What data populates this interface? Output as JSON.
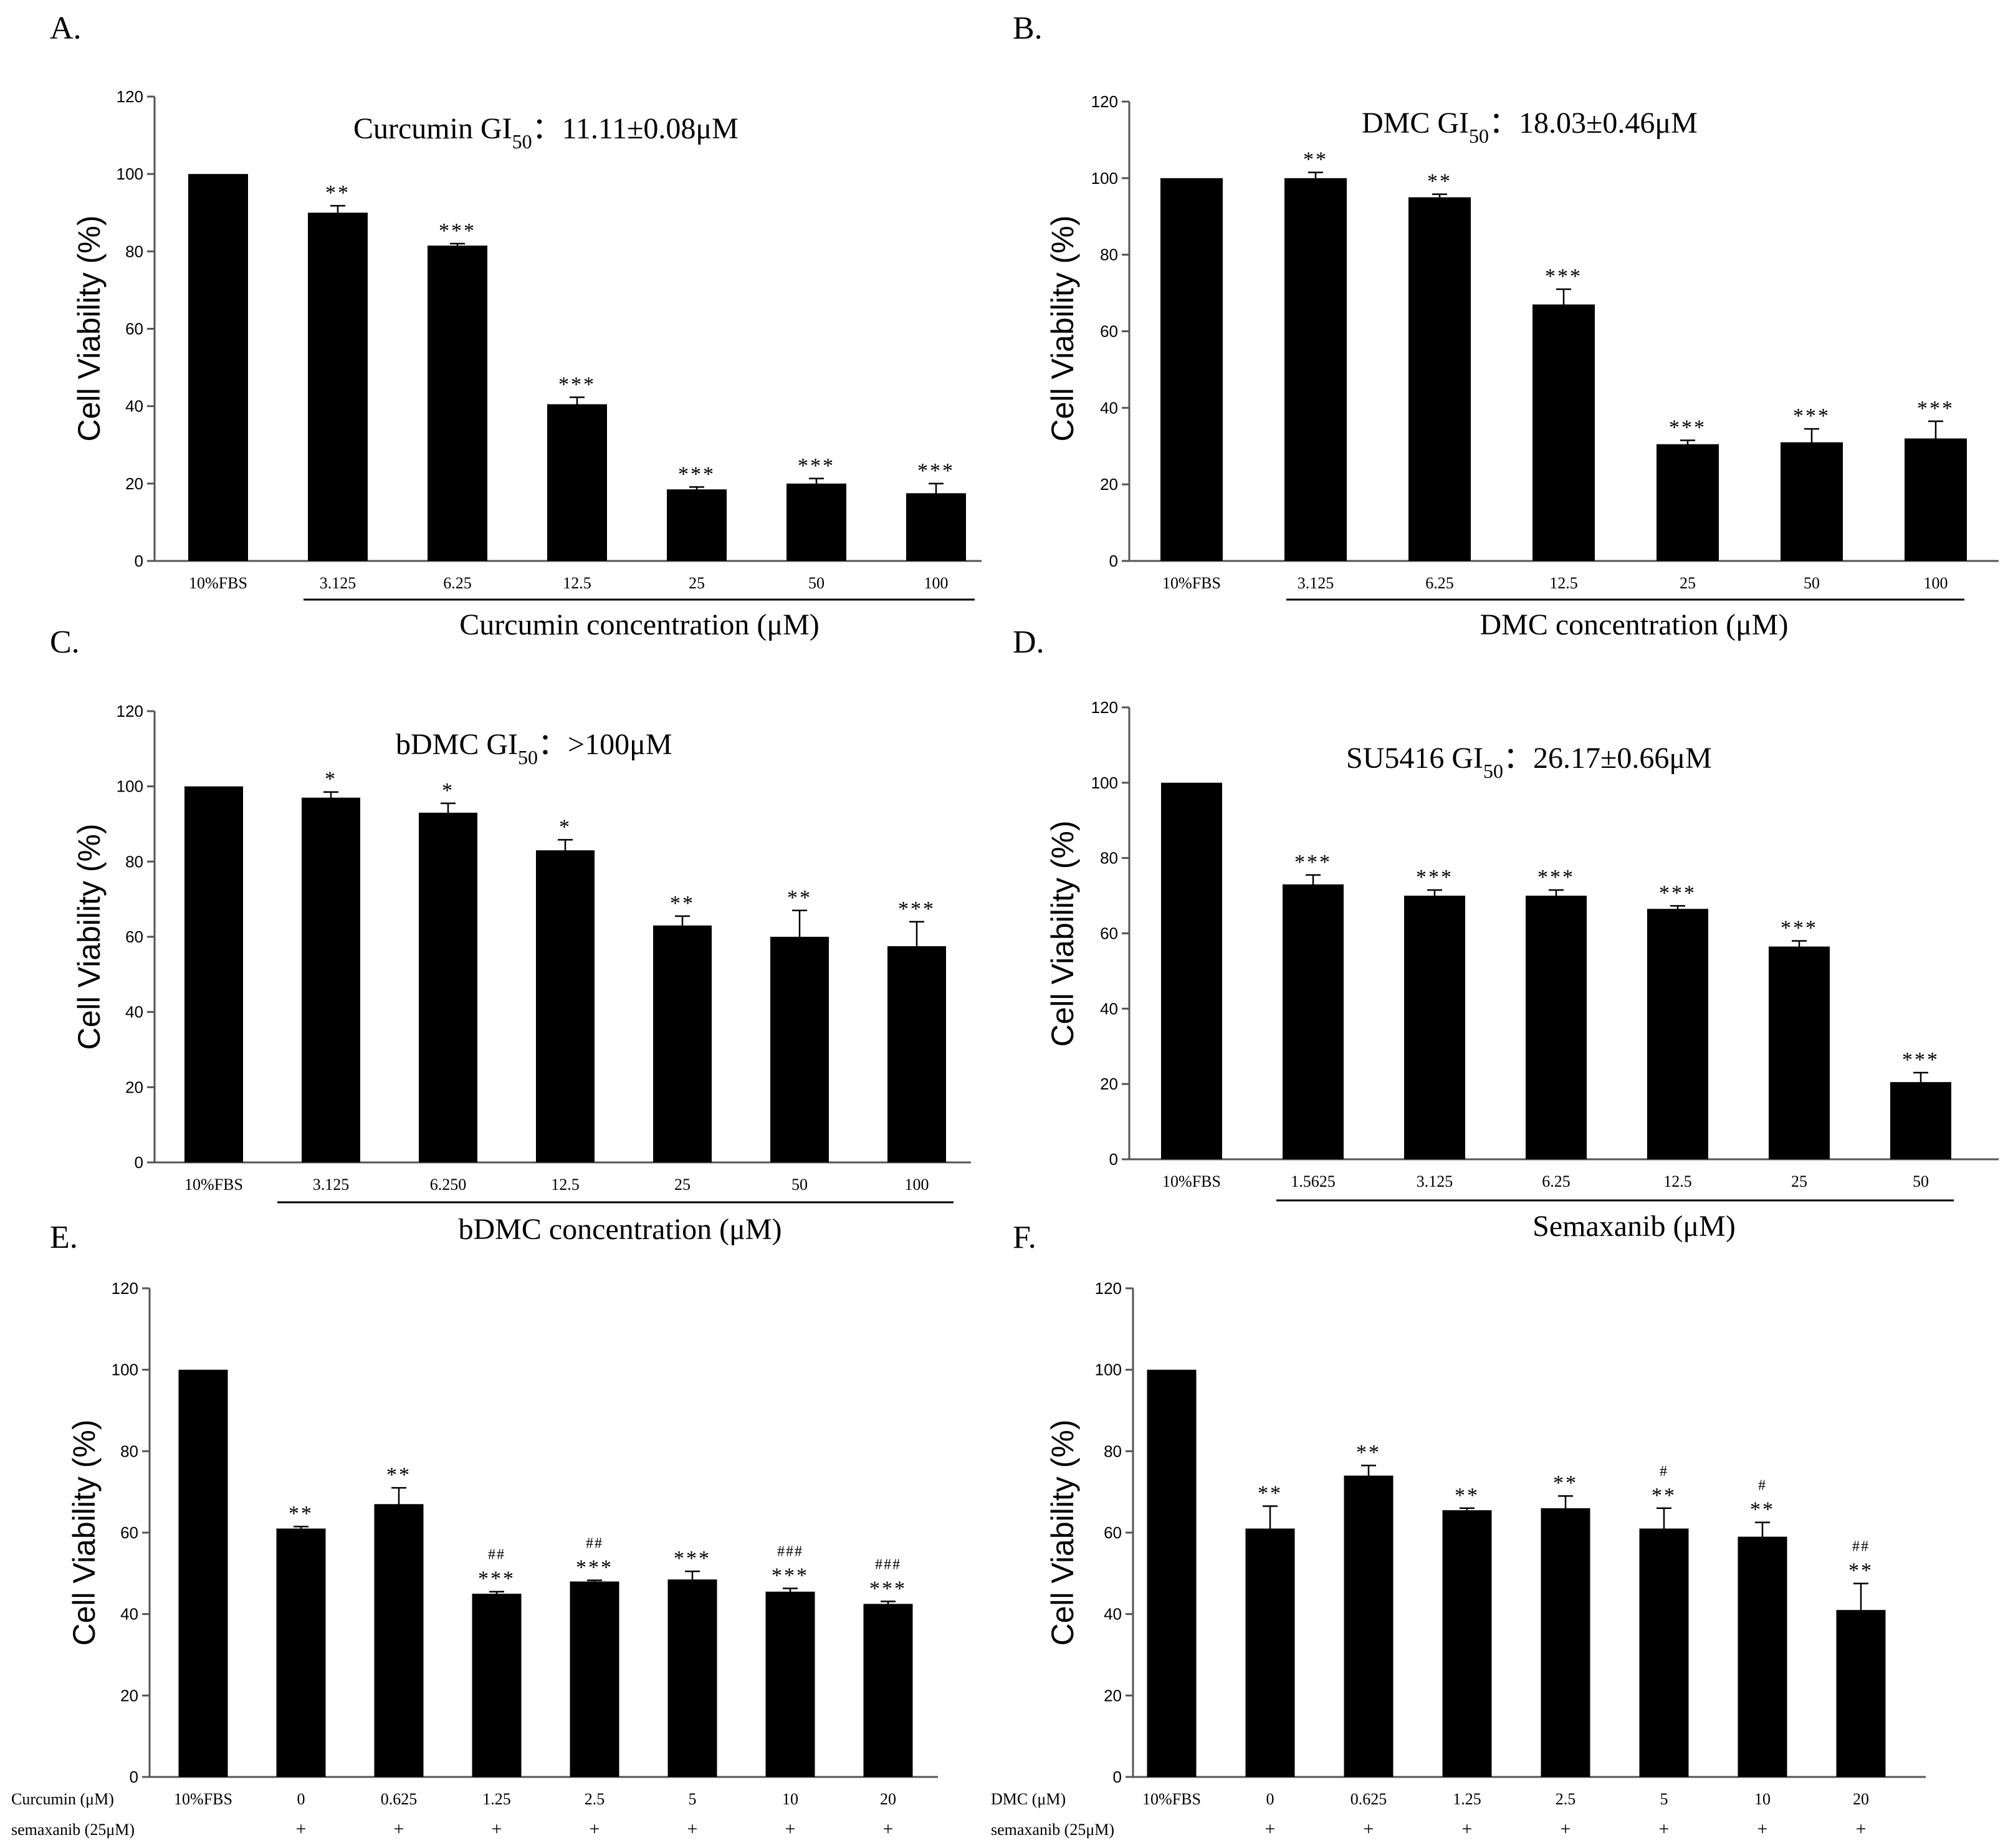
{
  "chart_data": [
    {
      "panel": "A.",
      "type": "bar",
      "title": "Curcumin GI",
      "title_sub": "50",
      "title_tail": "：11.11±0.08μM",
      "ylabel": "Cell Viability (%)",
      "xlabel": "Curcumin concentration (μM)",
      "ylim": [
        0,
        120
      ],
      "yticks": [
        0,
        20,
        40,
        60,
        80,
        100,
        120
      ],
      "categories": [
        "10%FBS",
        "3.125",
        "6.25",
        "12.5",
        "25",
        "50",
        "100"
      ],
      "values": [
        100,
        90,
        81.5,
        40.5,
        18.5,
        20,
        17.5
      ],
      "errors": [
        0,
        1.8,
        0.5,
        1.8,
        0.6,
        1.3,
        2.5
      ],
      "sig": [
        "",
        "**",
        "***",
        "***",
        "***",
        "***",
        "***"
      ],
      "sig2": [
        "",
        "",
        "",
        "",
        "",
        "",
        ""
      ]
    },
    {
      "panel": "B.",
      "type": "bar",
      "title": "DMC GI",
      "title_sub": "50",
      "title_tail": "：18.03±0.46μM",
      "ylabel": "Cell Viability (%)",
      "xlabel": "DMC concentration (μM)",
      "ylim": [
        0,
        120
      ],
      "yticks": [
        0,
        20,
        40,
        60,
        80,
        100,
        120
      ],
      "categories": [
        "10%FBS",
        "3.125",
        "6.25",
        "12.5",
        "25",
        "50",
        "100"
      ],
      "values": [
        100,
        100,
        95,
        67,
        30.5,
        31,
        32
      ],
      "errors": [
        0,
        1.5,
        0.8,
        4,
        1,
        3.5,
        4.5
      ],
      "sig": [
        "",
        "**",
        "**",
        "***",
        "***",
        "***",
        "***"
      ],
      "sig2": [
        "",
        "",
        "",
        "",
        "",
        "",
        ""
      ]
    },
    {
      "panel": "C.",
      "type": "bar",
      "title": "bDMC GI",
      "title_sub": "50",
      "title_tail": "：>100μM",
      "ylabel": "Cell Viability (%)",
      "xlabel": "bDMC concentration (μM)",
      "ylim": [
        0,
        120
      ],
      "yticks": [
        0,
        20,
        40,
        60,
        80,
        100,
        120
      ],
      "categories": [
        "10%FBS",
        "3.125",
        "6.250",
        "12.5",
        "25",
        "50",
        "100"
      ],
      "values": [
        100,
        97,
        93,
        83,
        63,
        60,
        57.5
      ],
      "errors": [
        0,
        1.5,
        2.5,
        2.8,
        2.5,
        7,
        6.5
      ],
      "sig": [
        "",
        "*",
        "*",
        "*",
        "**",
        "**",
        "***"
      ],
      "sig2": [
        "",
        "",
        "",
        "",
        "",
        "",
        ""
      ]
    },
    {
      "panel": "D.",
      "type": "bar",
      "title": "SU5416 GI",
      "title_sub": "50",
      "title_tail": "：26.17±0.66μM",
      "ylabel": "Cell Viability (%)",
      "xlabel": "Semaxanib (μM)",
      "ylim": [
        0,
        120
      ],
      "yticks": [
        0,
        20,
        40,
        60,
        80,
        100,
        120
      ],
      "categories": [
        "10%FBS",
        "1.5625",
        "3.125",
        "6.25",
        "12.5",
        "25",
        "50"
      ],
      "values": [
        100,
        73,
        70,
        70,
        66.5,
        56.5,
        20.5
      ],
      "errors": [
        0,
        2.5,
        1.5,
        1.5,
        0.8,
        1.5,
        2.5
      ],
      "sig": [
        "",
        "***",
        "***",
        "***",
        "***",
        "***",
        "***"
      ],
      "sig2": [
        "",
        "",
        "",
        "",
        "",
        "",
        ""
      ]
    },
    {
      "panel": "E.",
      "type": "bar",
      "title": "",
      "title_sub": "",
      "title_tail": "",
      "ylabel": "Cell Viability (%)",
      "xlabel": "",
      "row1_label": "Curcumin  (μM)",
      "row2_label": "semaxanib (25μM)",
      "ylim": [
        0,
        120
      ],
      "yticks": [
        0,
        20,
        40,
        60,
        80,
        100,
        120
      ],
      "categories": [
        "10%FBS",
        "0",
        "0.625",
        "1.25",
        "2.5",
        "5",
        "10",
        "20"
      ],
      "row2": [
        "",
        "+",
        "+",
        "+",
        "+",
        "+",
        "+",
        "+"
      ],
      "values": [
        100,
        61,
        67,
        45,
        48,
        48.5,
        45.5,
        42.5
      ],
      "errors": [
        0,
        0.5,
        4,
        0.5,
        0.3,
        2,
        0.8,
        0.6
      ],
      "sig": [
        "",
        "**",
        "**",
        "***",
        "***",
        "***",
        "***",
        "***"
      ],
      "sig2": [
        "",
        "",
        "",
        "##",
        "##",
        "",
        "###",
        "###"
      ]
    },
    {
      "panel": "F.",
      "type": "bar",
      "title": "",
      "title_sub": "",
      "title_tail": "",
      "ylabel": "Cell Viability (%)",
      "xlabel": "",
      "row1_label": "DMC  (μM)",
      "row2_label": "semaxanib (25μM)",
      "ylim": [
        0,
        120
      ],
      "yticks": [
        0,
        20,
        40,
        60,
        80,
        100,
        120
      ],
      "categories": [
        "10%FBS",
        "0",
        "0.625",
        "1.25",
        "2.5",
        "5",
        "10",
        "20"
      ],
      "row2": [
        "",
        "+",
        "+",
        "+",
        "+",
        "+",
        "+",
        "+"
      ],
      "values": [
        100,
        61,
        74,
        65.5,
        66,
        61,
        59,
        41
      ],
      "errors": [
        0,
        5.5,
        2.5,
        0.5,
        3,
        5,
        3.5,
        6.5
      ],
      "sig": [
        "",
        "**",
        "**",
        "**",
        "**",
        "**",
        "**",
        "**"
      ],
      "sig2": [
        "",
        "",
        "",
        "",
        "",
        "#",
        "#",
        "##"
      ]
    }
  ]
}
